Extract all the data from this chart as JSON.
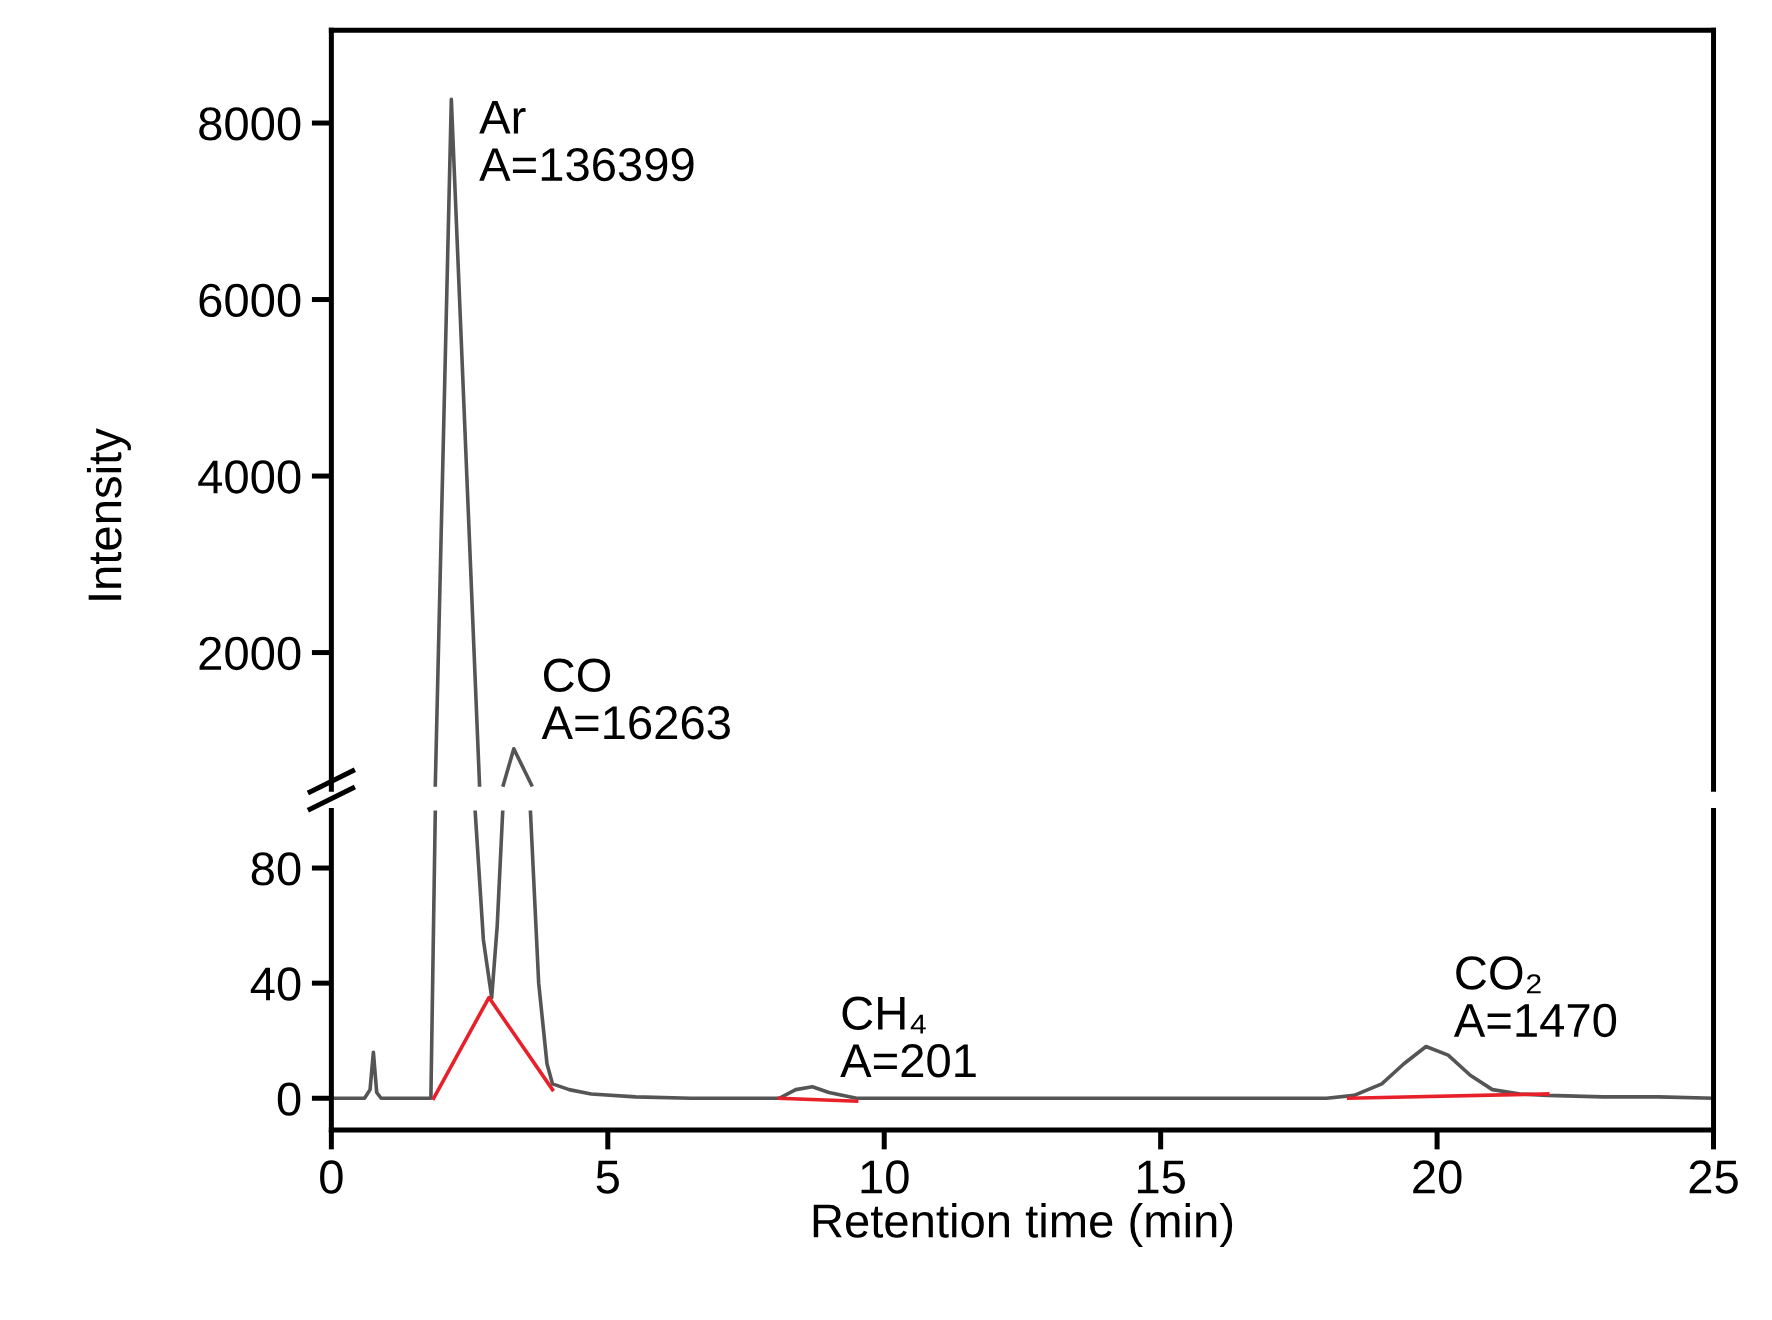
{
  "chart_data": [
    {
      "type": "line",
      "ylabel": "Intensity",
      "xlim": [
        0,
        25
      ],
      "ylim": [
        450,
        9050
      ],
      "yticks": [
        2000,
        4000,
        6000,
        8000
      ],
      "tick_labels": "y",
      "grid": false,
      "legend": false,
      "marker": "none",
      "line_style": "solid",
      "annotations": [
        {
          "text": "Ar\nA=136399",
          "x": 2.17,
          "y": 8270
        },
        {
          "text": "CO\nA=16263",
          "x": 3.3,
          "y": 910
        }
      ],
      "series": [
        {
          "color": "#555555",
          "x": [
            1.88,
            2.17,
            2.68,
            2.9,
            3.11,
            3.3,
            3.62
          ],
          "values": [
            500,
            8270,
            500,
            null,
            500,
            910,
            500
          ]
        }
      ]
    },
    {
      "type": "line",
      "xlabel": "Retention time (min)",
      "xlim": [
        0,
        25
      ],
      "ylim": [
        -11,
        100
      ],
      "xticks": [
        0,
        5,
        10,
        15,
        20,
        25
      ],
      "yticks": [
        0,
        40,
        80
      ],
      "grid": false,
      "legend": false,
      "marker": "none",
      "line_style": "solid",
      "annotations": [
        {
          "text": "CH₄\nA=201",
          "x": 8.7,
          "y": 4
        },
        {
          "text": "CO₂\nA=1470",
          "x": 19.8,
          "y": 18
        }
      ],
      "series": [
        {
          "color": "#555555",
          "x": [
            0,
            0.3,
            0.6,
            0.7,
            0.76,
            0.82,
            0.9,
            1.2,
            1.5,
            1.8,
            1.88,
            2.2,
            2.6,
            2.75,
            2.9,
            3.0,
            3.1,
            3.3,
            3.6,
            3.75,
            3.9,
            4.0,
            4.3,
            4.7,
            5.5,
            6.5,
            7.5,
            8.1,
            8.4,
            8.7,
            9.0,
            9.5,
            10,
            11,
            12,
            13,
            14,
            15,
            16,
            17,
            18,
            18.5,
            19,
            19.4,
            19.8,
            20.2,
            20.6,
            21,
            21.5,
            22,
            23,
            24,
            25
          ],
          "values": [
            0,
            0,
            0,
            3,
            16,
            2,
            0,
            0,
            0,
            0,
            100,
            null,
            100,
            55,
            35,
            60,
            100,
            null,
            100,
            40,
            12,
            5,
            3,
            1.5,
            0.5,
            0,
            0,
            0,
            3,
            4,
            2,
            0,
            0,
            0,
            0,
            0,
            0,
            0,
            0,
            0,
            0,
            1,
            5,
            12,
            18,
            15,
            8,
            3,
            1.5,
            1,
            0.5,
            0.5,
            0
          ]
        },
        {
          "color": "#e8202a",
          "x": [
            1.85,
            2.85,
            4.0
          ],
          "values": [
            0,
            35,
            3
          ]
        },
        {
          "color": "#e8202a",
          "x": [
            8.1,
            9.5
          ],
          "values": [
            0,
            -1
          ]
        },
        {
          "color": "#e8202a",
          "x": [
            18.4,
            22
          ],
          "values": [
            0,
            1.5
          ]
        }
      ]
    }
  ]
}
